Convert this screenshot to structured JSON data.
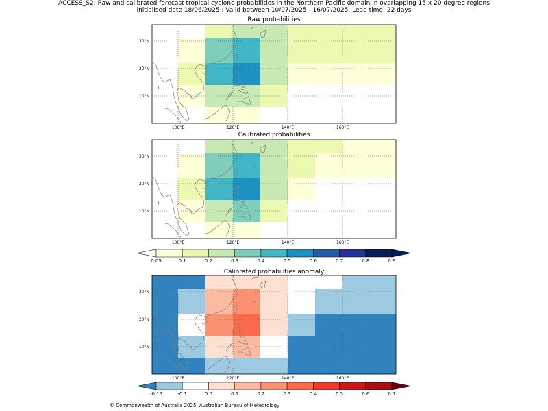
{
  "header": {
    "line1": "ACCESS_S2: Raw and calibrated forecast tropical cyclone probabilities in the Northern Pacific domain in overlapping 15 x 20 degree regions",
    "line2": "initialised date 18/06/2025 :  Valid between 10/07/2025 - 16/07/2025. Lead time: 22 days"
  },
  "footer": "© Commonwealth of Australia 2025, Australian Bureau of Meteorology",
  "axes": {
    "lon_labels": [
      "100°E",
      "120°E",
      "140°E",
      "160°E"
    ],
    "lat_labels": [
      "30°N",
      "20°N",
      "10°N"
    ]
  },
  "colors": {
    "prob_palette": [
      "#ffffff",
      "#ffffd9",
      "#edf8b1",
      "#c7e9b4",
      "#7fcdbb",
      "#41b6c4",
      "#1d91c0",
      "#225ea8",
      "#253494",
      "#081d58",
      "#081d58"
    ],
    "anom_palette": [
      "#3182bd",
      "#9ecae1",
      "#ffffff",
      "#fee0d2",
      "#fcbba1",
      "#fc9272",
      "#fb6a4a",
      "#ef3b2c",
      "#cb181d",
      "#a50f15",
      "#67000d"
    ],
    "coast": "#808080"
  },
  "colorbars": {
    "prob": {
      "labels": [
        "0.05",
        "0.1",
        "0.2",
        "0.3",
        "0.4",
        "0.5",
        "0.6",
        "0.7",
        "0.8",
        "0.9"
      ]
    },
    "anom": {
      "labels": [
        "-0.15",
        "-0.1",
        "0.0",
        "0.1",
        "0.2",
        "0.3",
        "0.4",
        "0.5",
        "0.6",
        "0.7"
      ]
    }
  },
  "maps": [
    {
      "title": "Raw probabilities",
      "grid": [
        [
          0,
          0,
          2,
          3,
          3,
          2,
          2,
          2,
          2
        ],
        [
          0,
          1,
          4,
          5,
          3,
          2,
          2,
          2,
          2
        ],
        [
          0,
          2,
          5,
          6,
          3,
          1,
          1,
          1,
          1
        ],
        [
          0,
          1,
          3,
          3,
          2,
          0,
          0,
          0,
          0
        ],
        [
          0,
          0,
          1,
          1,
          0,
          0,
          0,
          0,
          0
        ]
      ]
    },
    {
      "title": "Calibrated probabilities",
      "grid": [
        [
          0,
          0,
          3,
          3,
          3,
          2,
          2,
          1,
          1
        ],
        [
          0,
          1,
          4,
          5,
          3,
          2,
          1,
          1,
          1
        ],
        [
          0,
          2,
          5,
          6,
          3,
          1,
          0,
          0,
          0
        ],
        [
          0,
          1,
          3,
          4,
          2,
          0,
          0,
          0,
          0
        ],
        [
          0,
          0,
          1,
          1,
          0,
          0,
          0,
          0,
          0
        ]
      ]
    },
    {
      "title": "Calibrated probabilities anomaly",
      "grid": [
        [
          0,
          0,
          3,
          3,
          3,
          2,
          2,
          1,
          1
        ],
        [
          0,
          1,
          4,
          5,
          3,
          2,
          1,
          1,
          1
        ],
        [
          0,
          2,
          5,
          6,
          3,
          1,
          0,
          0,
          0
        ],
        [
          0,
          1,
          3,
          4,
          2,
          0,
          0,
          0,
          0
        ],
        [
          0,
          0,
          1,
          1,
          0,
          0,
          0,
          0,
          0
        ]
      ]
    }
  ]
}
